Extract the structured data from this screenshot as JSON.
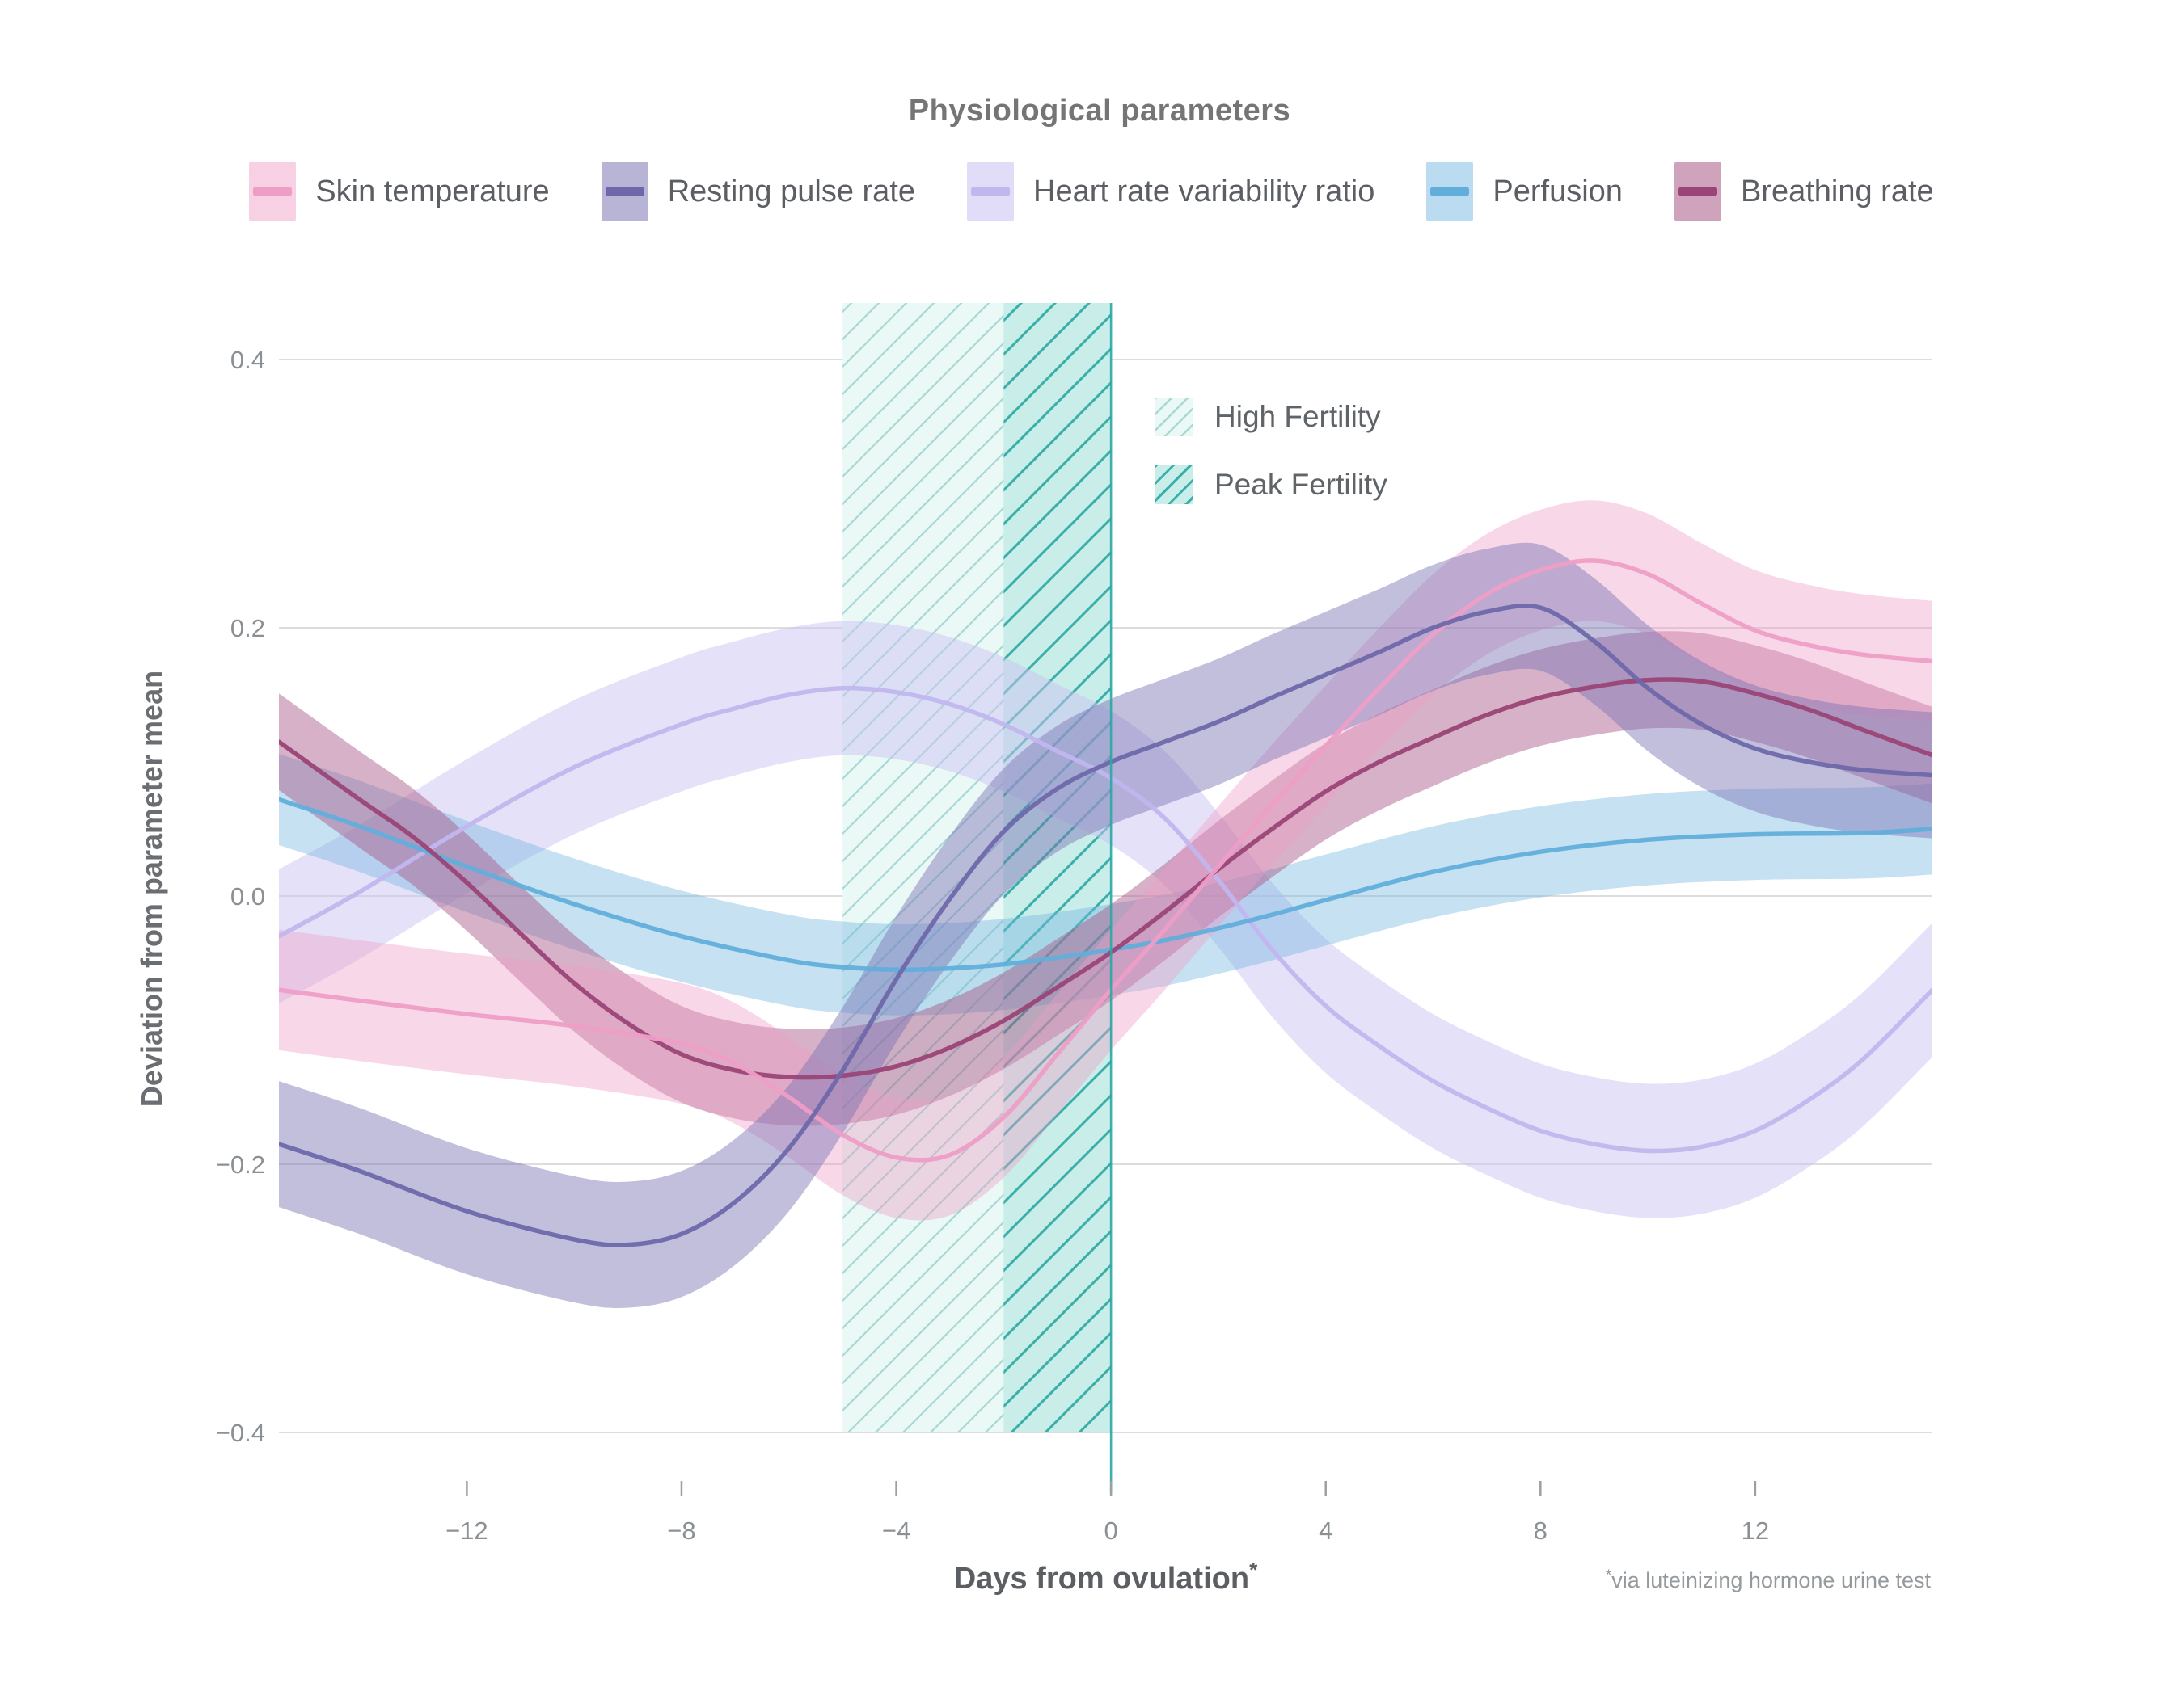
{
  "title": "Physiological parameters",
  "y_axis": {
    "title": "Deviation from parameter mean",
    "ticks": [
      "0.4",
      "0.2",
      "0.0",
      "−0.2",
      "−0.4"
    ],
    "tick_values": [
      0.4,
      0.2,
      0.0,
      -0.2,
      -0.4
    ]
  },
  "x_axis": {
    "title": "Days from ovulation",
    "title_superscript": "*",
    "ticks": [
      "−12",
      "−8",
      "−4",
      "0",
      "4",
      "8",
      "12"
    ],
    "tick_values": [
      -12,
      -8,
      -4,
      0,
      4,
      8,
      12
    ]
  },
  "footnote": {
    "marker": "*",
    "text": "via luteinizing hormone urine test"
  },
  "chart_data": {
    "type": "line",
    "title": "Physiological parameters",
    "xlabel": "Days from ovulation (via luteinizing hormone urine test)",
    "ylabel": "Deviation from parameter mean",
    "x_range": [
      -15.5,
      15.3
    ],
    "y_range": [
      -0.4,
      0.44
    ],
    "grid": true,
    "legend_position": "top",
    "series": [
      {
        "name": "Heart rate variability ratio",
        "line_color": "#C1B6EE",
        "fill_color": "#CCC3F1",
        "fill_opacity": 0.5,
        "band_halfwidth": 0.05,
        "x": [
          -15.5,
          -14,
          -12,
          -10,
          -8,
          -7,
          -6,
          -5,
          -4,
          -3,
          -2,
          -1,
          0,
          1,
          2,
          3,
          4,
          5,
          6,
          7,
          8,
          9,
          10,
          11,
          12,
          13,
          14,
          15.3
        ],
        "y": [
          -0.03,
          0.003,
          0.052,
          0.096,
          0.128,
          0.14,
          0.15,
          0.155,
          0.152,
          0.143,
          0.128,
          0.108,
          0.088,
          0.058,
          0.012,
          -0.04,
          -0.082,
          -0.112,
          -0.138,
          -0.158,
          -0.175,
          -0.185,
          -0.19,
          -0.187,
          -0.175,
          -0.152,
          -0.122,
          -0.07
        ]
      },
      {
        "name": "Perfusion",
        "line_color": "#62AEDB",
        "fill_color": "#77B8E0",
        "fill_opacity": 0.42,
        "band_halfwidth": 0.034,
        "x": [
          -15.5,
          -14,
          -12,
          -10,
          -8,
          -6,
          -5,
          -4,
          -3,
          -2,
          -1,
          0,
          1,
          2,
          3,
          4,
          6,
          8,
          10,
          12,
          14,
          15.3
        ],
        "y": [
          0.072,
          0.052,
          0.022,
          -0.006,
          -0.03,
          -0.048,
          -0.053,
          -0.055,
          -0.054,
          -0.051,
          -0.046,
          -0.04,
          -0.033,
          -0.024,
          -0.014,
          -0.003,
          0.018,
          0.033,
          0.042,
          0.046,
          0.047,
          0.05
        ]
      },
      {
        "name": "Breathing rate",
        "line_color": "#9A4577",
        "fill_color": "#A85585",
        "fill_opacity": 0.46,
        "band_halfwidth": 0.036,
        "x": [
          -15.5,
          -14,
          -13,
          -12,
          -11,
          -10,
          -9,
          -8,
          -7,
          -6,
          -5,
          -4,
          -3,
          -2,
          -1,
          0,
          1,
          2,
          3,
          4,
          5,
          6,
          7,
          8,
          9,
          10,
          11,
          12,
          13,
          14,
          15.3
        ],
        "y": [
          0.115,
          0.072,
          0.044,
          0.01,
          -0.028,
          -0.065,
          -0.095,
          -0.118,
          -0.13,
          -0.135,
          -0.134,
          -0.127,
          -0.113,
          -0.093,
          -0.068,
          -0.042,
          -0.012,
          0.02,
          0.05,
          0.078,
          0.1,
          0.118,
          0.135,
          0.148,
          0.156,
          0.161,
          0.16,
          0.151,
          0.139,
          0.124,
          0.105
        ]
      },
      {
        "name": "Skin temperature",
        "line_color": "#EE9EC6",
        "fill_color": "#EE9EC6",
        "fill_opacity": 0.4,
        "band_halfwidth": 0.045,
        "x": [
          -15.5,
          -14,
          -12,
          -10,
          -8,
          -7,
          -6,
          -5,
          -4,
          -3,
          -2,
          -1,
          0,
          1,
          2,
          3,
          4,
          5,
          6,
          7,
          8,
          9,
          10,
          11,
          12,
          13,
          14,
          15.3
        ],
        "y": [
          -0.07,
          -0.078,
          -0.088,
          -0.097,
          -0.11,
          -0.125,
          -0.15,
          -0.178,
          -0.195,
          -0.193,
          -0.165,
          -0.118,
          -0.07,
          -0.025,
          0.022,
          0.068,
          0.112,
          0.155,
          0.195,
          0.225,
          0.243,
          0.25,
          0.24,
          0.218,
          0.198,
          0.187,
          0.18,
          0.175
        ]
      },
      {
        "name": "Resting pulse rate",
        "line_color": "#6E68AA",
        "fill_color": "#7A74B4",
        "fill_opacity": 0.46,
        "band_halfwidth": 0.047,
        "x": [
          -15.5,
          -14,
          -12,
          -10,
          -9,
          -8,
          -7,
          -6,
          -5,
          -4,
          -3,
          -2,
          -1,
          0,
          1,
          2,
          3,
          4,
          5,
          6,
          7,
          8,
          9,
          10,
          11,
          12,
          13,
          14,
          15.3
        ],
        "y": [
          -0.185,
          -0.205,
          -0.235,
          -0.256,
          -0.26,
          -0.252,
          -0.228,
          -0.188,
          -0.13,
          -0.062,
          -0.002,
          0.048,
          0.08,
          0.1,
          0.115,
          0.13,
          0.148,
          0.165,
          0.182,
          0.2,
          0.212,
          0.215,
          0.19,
          0.155,
          0.128,
          0.11,
          0.1,
          0.094,
          0.09
        ]
      }
    ],
    "regions": [
      {
        "label": "High Fertility",
        "x_start": -5,
        "x_end": 0,
        "fill": "#EAF8F6",
        "hatch_color": "#A7D8D4"
      },
      {
        "label": "Peak Fertility",
        "x_start": -2,
        "x_end": 0,
        "fill": "#C9EDE9",
        "hatch_color": "#3AAFA9"
      }
    ],
    "ovulation_line": {
      "x": 0,
      "color": "#2AA7A4"
    }
  },
  "colors": {
    "gridline": "#DDDDDD",
    "tick_text": "#8B9094",
    "title_text": "#757575"
  }
}
